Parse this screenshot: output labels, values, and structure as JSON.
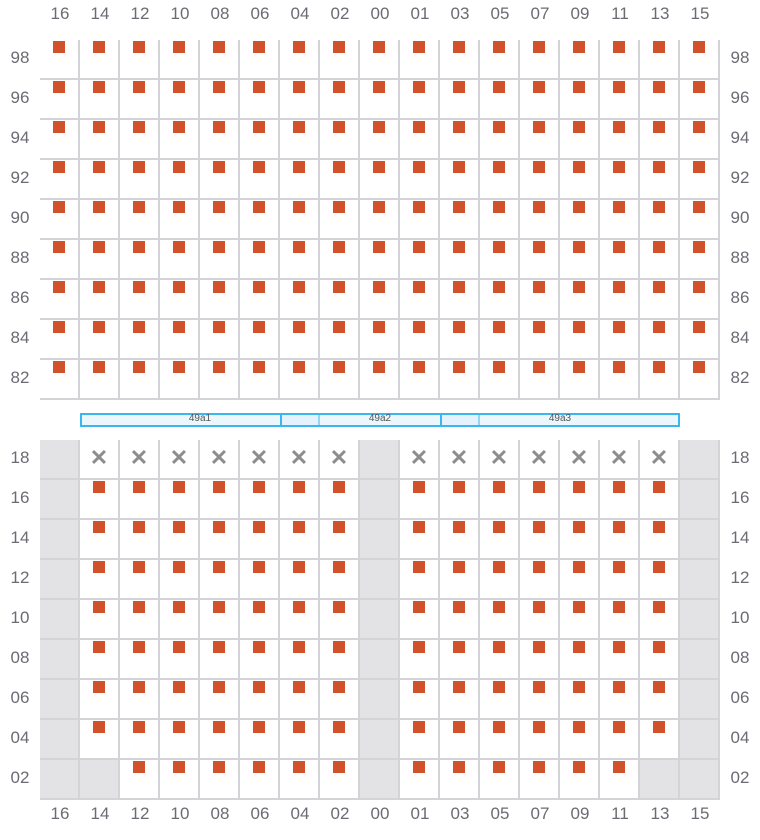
{
  "columns": [
    "16",
    "14",
    "12",
    "10",
    "08",
    "06",
    "04",
    "02",
    "00",
    "01",
    "03",
    "05",
    "07",
    "09",
    "11",
    "13",
    "15"
  ],
  "top_rows": [
    "98",
    "96",
    "94",
    "92",
    "90",
    "88",
    "86",
    "84",
    "82"
  ],
  "bottom_rows": [
    "18",
    "16",
    "14",
    "12",
    "10",
    "08",
    "06",
    "04",
    "02"
  ],
  "top_grid": {
    "all_cells": "occupied"
  },
  "bottom_grid": {
    "disabled_columns": [
      "16",
      "00",
      "15"
    ],
    "row_18": "blocked",
    "row_02_disabled_extra": [
      "14",
      "13"
    ]
  },
  "segments": [
    {
      "label": "49a1",
      "from": "14",
      "to": "04"
    },
    {
      "label": "49a2",
      "from": "04",
      "to": "03"
    },
    {
      "label": "49a3",
      "from": "03",
      "to": "13"
    }
  ],
  "icons": {
    "occupied": "filled-square",
    "blocked": "x-mark"
  },
  "colors": {
    "occupied": "#cf522b",
    "blocked": "#8d8d8d",
    "disabled": "#e3e3e6",
    "segment_border": "#3cb6ee",
    "grid_line": "#d4d4d8"
  }
}
